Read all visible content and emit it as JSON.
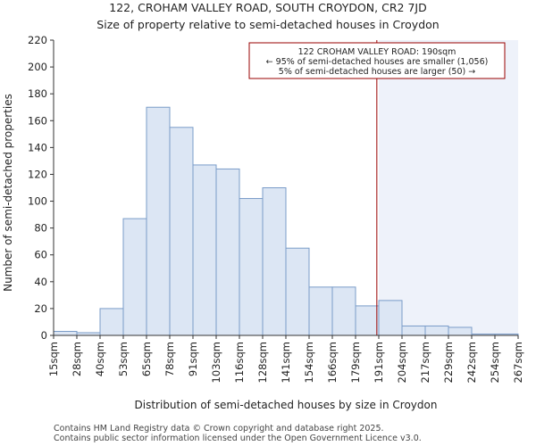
{
  "chart_data": {
    "type": "bar",
    "title": "122, CROHAM VALLEY ROAD, SOUTH CROYDON, CR2 7JD",
    "subtitle": "Size of property relative to semi-detached houses in Croydon",
    "xlabel": "Distribution of semi-detached houses by size in Croydon",
    "ylabel": "Number of semi-detached properties",
    "ylim": [
      0,
      220
    ],
    "yticks": [
      0,
      20,
      40,
      60,
      80,
      100,
      120,
      140,
      160,
      180,
      200,
      220
    ],
    "bin_edges": [
      15,
      28,
      40,
      53,
      65,
      78,
      91,
      103,
      116,
      128,
      141,
      154,
      166,
      179,
      191,
      204,
      217,
      229,
      242,
      254,
      267
    ],
    "x_tick_labels": [
      "15sqm",
      "28sqm",
      "40sqm",
      "53sqm",
      "65sqm",
      "78sqm",
      "91sqm",
      "103sqm",
      "116sqm",
      "128sqm",
      "141sqm",
      "154sqm",
      "166sqm",
      "179sqm",
      "191sqm",
      "204sqm",
      "217sqm",
      "229sqm",
      "242sqm",
      "254sqm",
      "267sqm"
    ],
    "values": [
      3,
      2,
      20,
      87,
      170,
      155,
      127,
      124,
      102,
      110,
      65,
      36,
      36,
      22,
      26,
      7,
      7,
      6,
      1,
      1
    ],
    "property_value": 190,
    "annotation": {
      "line1": "122 CROHAM VALLEY ROAD: 190sqm",
      "line2": "← 95% of semi-detached houses are smaller (1,056)",
      "line3": "5% of semi-detached houses are larger (50) →"
    },
    "colors": {
      "bar_fill": "#dce6f4",
      "bar_stroke": "#7a9cc8",
      "highlight_bg": "#eef2fa",
      "marker": "#990000",
      "axis": "#333333"
    }
  },
  "footer": {
    "line1": "Contains HM Land Registry data © Crown copyright and database right 2025.",
    "line2": "Contains public sector information licensed under the Open Government Licence v3.0."
  }
}
